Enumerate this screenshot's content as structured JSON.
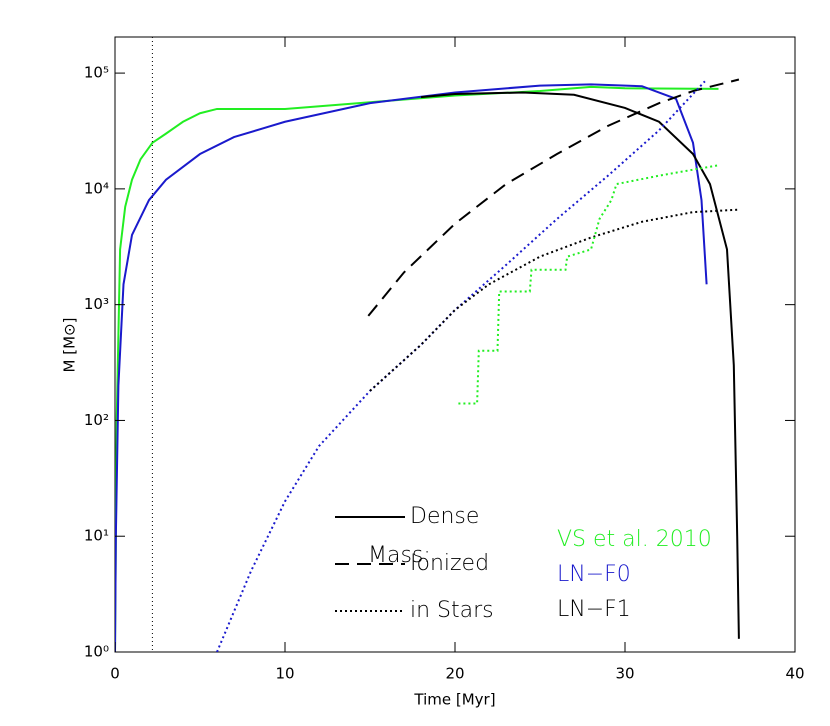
{
  "chart_data": {
    "type": "line",
    "x_label": "Time [Myr]",
    "y_label": "M [M⊙]",
    "xlim": [
      0,
      40
    ],
    "xticks": [
      0,
      10,
      20,
      30,
      40
    ],
    "ylim": [
      1,
      205000
    ],
    "y_scale": "log",
    "yticks": [
      {
        "value": 1,
        "label": "10⁰"
      },
      {
        "value": 10,
        "label": "10¹"
      },
      {
        "value": 100,
        "label": "10²"
      },
      {
        "value": 1000,
        "label": "10³"
      },
      {
        "value": 10000,
        "label": "10⁴"
      },
      {
        "value": 100000,
        "label": "10⁵"
      }
    ],
    "vline": 2.2,
    "legend_title": "Mass:",
    "line_styles": [
      {
        "name": "Dense",
        "dash": "solid"
      },
      {
        "name": "Ionized",
        "dash": "dashed"
      },
      {
        "name": "in Stars",
        "dash": "dotted"
      }
    ],
    "models": [
      {
        "name": "VS et al. 2010",
        "color": "#22ee22"
      },
      {
        "name": "LN−F0",
        "color": "#1a1acc"
      },
      {
        "name": "LN−F1",
        "color": "#000000"
      }
    ],
    "series": [
      {
        "color": "#22ee22",
        "dash": "solid",
        "x": [
          0,
          0.1,
          0.3,
          0.6,
          1,
          1.5,
          2.2,
          3,
          4,
          5,
          6,
          10,
          15,
          20,
          25,
          28,
          30,
          35.5
        ],
        "values": [
          1,
          100,
          3000,
          7000,
          12000,
          18000,
          25000,
          30000,
          38000,
          45000,
          49000,
          49000,
          56000,
          64000,
          70000,
          76000,
          74000,
          73000
        ]
      },
      {
        "color": "#1a1acc",
        "dash": "solid",
        "x": [
          0,
          0.05,
          0.2,
          0.5,
          1,
          2,
          3,
          5,
          7,
          10,
          15,
          20,
          25,
          28,
          31,
          33,
          34,
          34.5,
          34.8
        ],
        "values": [
          1,
          10,
          200,
          1500,
          4000,
          8000,
          12000,
          20000,
          28000,
          38000,
          55000,
          68000,
          78000,
          80000,
          77000,
          60000,
          25000,
          8000,
          1500
        ]
      },
      {
        "color": "#000000",
        "dash": "solid",
        "x": [
          18,
          20,
          24,
          27,
          30,
          32,
          34,
          35,
          36,
          36.4,
          36.6,
          36.7
        ],
        "values": [
          62000,
          66000,
          68000,
          65000,
          50000,
          38000,
          20000,
          11000,
          3000,
          300,
          10,
          1.3
        ]
      },
      {
        "color": "#000000",
        "dash": "dashed",
        "x": [
          14.9,
          17,
          20,
          23,
          26,
          29,
          32,
          34,
          36.7
        ],
        "values": [
          800,
          1900,
          5000,
          11000,
          20000,
          35000,
          55000,
          70000,
          88000
        ]
      },
      {
        "color": "#1a1acc",
        "dash": "dotted",
        "x": [
          6,
          8,
          10,
          12,
          15,
          18,
          20,
          23,
          26,
          29,
          32,
          34.7
        ],
        "values": [
          1,
          5,
          20,
          60,
          180,
          450,
          900,
          2200,
          5500,
          13000,
          32000,
          85000
        ]
      },
      {
        "color": "#000000",
        "dash": "dotted",
        "x": [
          15,
          18,
          20,
          22,
          25,
          28,
          31,
          34,
          36.6
        ],
        "values": [
          180,
          450,
          900,
          1500,
          2600,
          3800,
          5200,
          6300,
          6600
        ]
      },
      {
        "color": "#22ee22",
        "dash": "dotted",
        "x": [
          20.2,
          21.3,
          21.4,
          22.5,
          22.6,
          24.4,
          24.5,
          26.5,
          26.6,
          28,
          28.5,
          29.2,
          29.5,
          32,
          35.5
        ],
        "values": [
          140,
          140,
          400,
          400,
          1300,
          1300,
          2000,
          2000,
          2600,
          3000,
          5500,
          8000,
          11000,
          13000,
          16000
        ]
      }
    ]
  }
}
